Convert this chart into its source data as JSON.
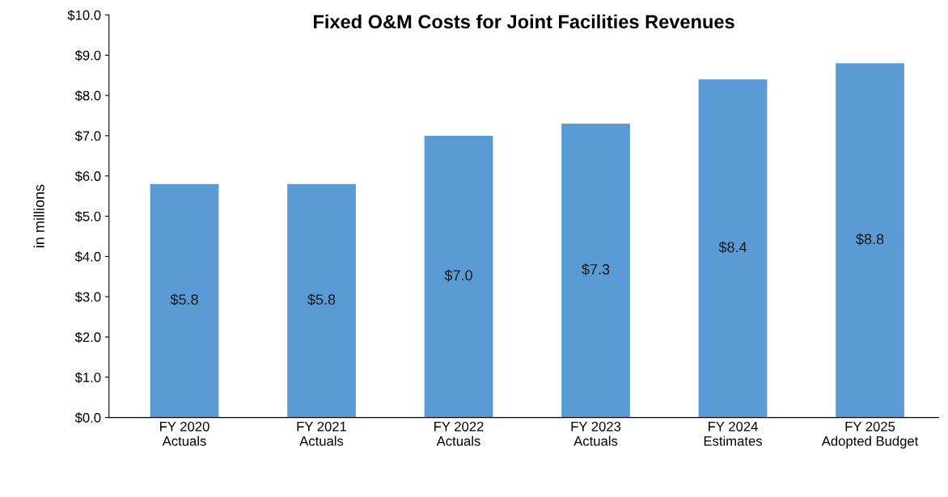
{
  "chart_data": {
    "type": "bar",
    "title": "Fixed O&M Costs for Joint Facilities Revenues",
    "ylabel": "in millions",
    "categories": [
      "FY 2020\nActuals",
      "FY 2021\nActuals",
      "FY 2022\nActuals",
      "FY 2023\nActuals",
      "FY 2024\nEstimates",
      "FY 2025\nAdopted Budget"
    ],
    "values": [
      5.8,
      5.8,
      7.0,
      7.3,
      8.4,
      8.8
    ],
    "value_labels": [
      "$5.8",
      "$5.8",
      "$7.0",
      "$7.3",
      "$8.4",
      "$8.8"
    ],
    "color": "#5b9bd5",
    "ylim": [
      0,
      10
    ],
    "yticks": [
      {
        "value": 0,
        "label": "$0.0"
      },
      {
        "value": 1,
        "label": "$1.0"
      },
      {
        "value": 2,
        "label": "$2.0"
      },
      {
        "value": 3,
        "label": "$3.0"
      },
      {
        "value": 4,
        "label": "$4.0"
      },
      {
        "value": 5,
        "label": "$5.0"
      },
      {
        "value": 6,
        "label": "$6.0"
      },
      {
        "value": 7,
        "label": "$7.0"
      },
      {
        "value": 8,
        "label": "$8.0"
      },
      {
        "value": 9,
        "label": "$9.0"
      },
      {
        "value": 10,
        "label": "$10.0"
      }
    ],
    "grid": false
  }
}
